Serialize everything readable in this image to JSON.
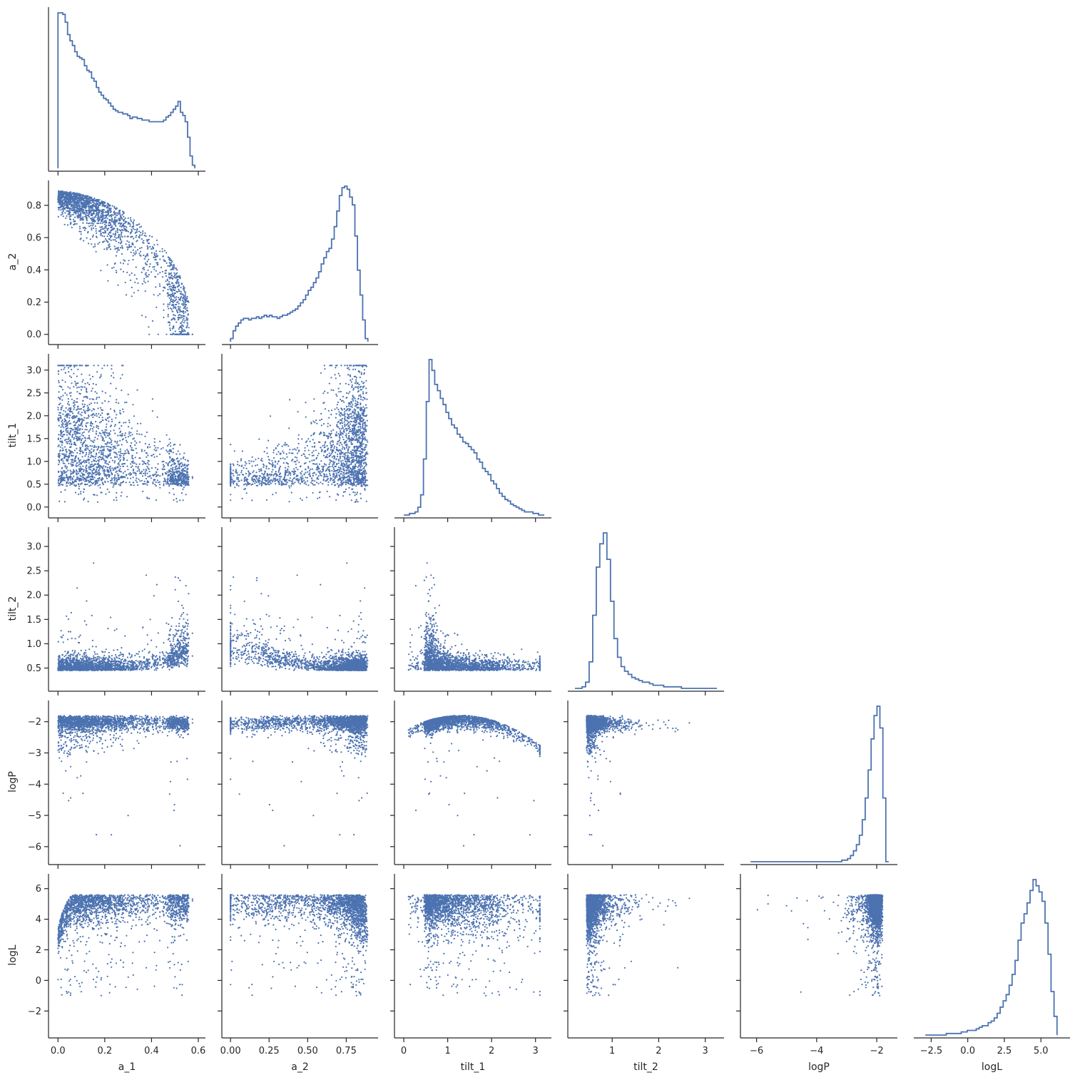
{
  "colors": {
    "series": "#4c72b0",
    "axis": "#262626",
    "background": "#ffffff"
  },
  "chart_data": {
    "type": "scatter",
    "layout": "corner-pairplot",
    "variables": [
      "a_1",
      "a_2",
      "tilt_1",
      "tilt_2",
      "logP",
      "logL"
    ],
    "axis_labels": {
      "x": [
        "a_1",
        "a_2",
        "tilt_1",
        "tilt_2",
        "logP",
        "logL"
      ],
      "y": [
        "",
        "a_2",
        "tilt_1",
        "tilt_2",
        "logP",
        "logL"
      ]
    },
    "ranges": {
      "a_1": [
        -0.01,
        0.6
      ],
      "a_2": [
        -0.01,
        0.91
      ],
      "tilt_1": [
        -0.05,
        3.2
      ],
      "tilt_2": [
        0.2,
        3.25
      ],
      "logP": [
        -6.3,
        -1.55
      ],
      "logL": [
        -3.2,
        6.5
      ]
    },
    "ticks": {
      "a_1": {
        "values": [
          0.0,
          0.2,
          0.4,
          0.6
        ],
        "labels": [
          "0.0",
          "0.2",
          "0.4",
          "0.6"
        ]
      },
      "a_2": {
        "values": [
          0.0,
          0.25,
          0.5,
          0.75
        ],
        "labels": [
          "0.00",
          "0.25",
          "0.50",
          "0.75"
        ]
      },
      "tilt_1": {
        "values": [
          0,
          1,
          2,
          3
        ],
        "labels": [
          "0",
          "1",
          "2",
          "3"
        ]
      },
      "tilt_2": {
        "values": [
          1,
          2,
          3
        ],
        "labels": [
          "1",
          "2",
          "3"
        ]
      },
      "logP": {
        "values": [
          -6,
          -4,
          -2
        ],
        "labels": [
          "−6",
          "−4",
          "−2"
        ]
      },
      "logL": {
        "values": [
          -2.5,
          0.0,
          2.5,
          5.0
        ],
        "labels": [
          "−2.5",
          "0.0",
          "2.5",
          "5.0"
        ]
      }
    },
    "y_ticks": {
      "a_2": {
        "values": [
          0.0,
          0.2,
          0.4,
          0.6,
          0.8
        ],
        "labels": [
          "0.0",
          "0.2",
          "0.4",
          "0.6",
          "0.8"
        ]
      },
      "tilt_1": {
        "values": [
          0.0,
          0.5,
          1.0,
          1.5,
          2.0,
          2.5,
          3.0
        ],
        "labels": [
          "0.0",
          "0.5",
          "1.0",
          "1.5",
          "2.0",
          "2.5",
          "3.0"
        ]
      },
      "tilt_2": {
        "values": [
          0.5,
          1.0,
          1.5,
          2.0,
          2.5,
          3.0
        ],
        "labels": [
          "0.5",
          "1.0",
          "1.5",
          "2.0",
          "2.5",
          "3.0"
        ]
      },
      "logP": {
        "values": [
          -6,
          -5,
          -4,
          -3,
          -2
        ],
        "labels": [
          "−6",
          "−5",
          "−4",
          "−3",
          "−2"
        ]
      },
      "logL": {
        "values": [
          -2,
          0,
          2,
          4,
          6
        ],
        "labels": [
          "−2",
          "0",
          "2",
          "4",
          "6"
        ]
      }
    },
    "histograms": {
      "a_1": {
        "bin_start": 0.0,
        "bin_end": 0.585,
        "counts": [
          1.0,
          1.0,
          0.99,
          0.94,
          0.86,
          0.82,
          0.79,
          0.75,
          0.72,
          0.71,
          0.7,
          0.66,
          0.63,
          0.62,
          0.58,
          0.56,
          0.52,
          0.49,
          0.47,
          0.45,
          0.44,
          0.42,
          0.4,
          0.38,
          0.37,
          0.36,
          0.36,
          0.35,
          0.35,
          0.34,
          0.32,
          0.33,
          0.33,
          0.32,
          0.32,
          0.31,
          0.31,
          0.31,
          0.3,
          0.3,
          0.3,
          0.3,
          0.3,
          0.3,
          0.31,
          0.33,
          0.34,
          0.36,
          0.38,
          0.4,
          0.43,
          0.36,
          0.34,
          0.3,
          0.2,
          0.08,
          0.02
        ]
      },
      "a_2": {
        "bin_start": 0.0,
        "bin_end": 0.89,
        "counts": [
          0.02,
          0.07,
          0.1,
          0.12,
          0.14,
          0.15,
          0.15,
          0.14,
          0.15,
          0.15,
          0.16,
          0.15,
          0.16,
          0.17,
          0.16,
          0.17,
          0.16,
          0.16,
          0.15,
          0.16,
          0.17,
          0.17,
          0.18,
          0.19,
          0.2,
          0.21,
          0.23,
          0.25,
          0.27,
          0.3,
          0.33,
          0.35,
          0.38,
          0.41,
          0.45,
          0.5,
          0.54,
          0.58,
          0.6,
          0.66,
          0.74,
          0.84,
          0.94,
          0.99,
          1.0,
          0.98,
          0.93,
          0.88,
          0.68,
          0.46,
          0.3,
          0.14,
          0.02
        ]
      },
      "tilt_1": {
        "bin_start": 0.0,
        "bin_end": 3.2,
        "counts": [
          0.0,
          0.0,
          0.01,
          0.01,
          0.02,
          0.05,
          0.13,
          0.36,
          0.73,
          1.0,
          0.93,
          0.84,
          0.8,
          0.75,
          0.71,
          0.66,
          0.62,
          0.58,
          0.56,
          0.52,
          0.5,
          0.47,
          0.46,
          0.44,
          0.42,
          0.4,
          0.36,
          0.34,
          0.3,
          0.28,
          0.26,
          0.22,
          0.2,
          0.17,
          0.14,
          0.12,
          0.1,
          0.09,
          0.07,
          0.06,
          0.05,
          0.04,
          0.03,
          0.02,
          0.02,
          0.02,
          0.01,
          0.01,
          0.0,
          0.0
        ]
      },
      "tilt_2": {
        "bin_start": 0.2,
        "bin_end": 3.25,
        "counts": [
          0.0,
          0.0,
          0.01,
          0.04,
          0.17,
          0.47,
          0.78,
          0.93,
          1.0,
          0.83,
          0.56,
          0.32,
          0.2,
          0.14,
          0.11,
          0.09,
          0.07,
          0.06,
          0.05,
          0.04,
          0.04,
          0.03,
          0.02,
          0.02,
          0.02,
          0.01,
          0.01,
          0.01,
          0.01,
          0.01,
          0.0,
          0.0,
          0.0,
          0.0,
          0.0,
          0.0,
          0.0,
          0.0,
          0.0,
          0.0
        ]
      },
      "logP": {
        "bin_start": -6.2,
        "bin_end": -1.6,
        "counts": [
          0.0,
          0.0,
          0.0,
          0.0,
          0.0,
          0.0,
          0.0,
          0.0,
          0.0,
          0.0,
          0.0,
          0.0,
          0.0,
          0.0,
          0.0,
          0.0,
          0.0,
          0.0,
          0.0,
          0.0,
          0.0,
          0.0,
          0.0,
          0.0,
          0.0,
          0.0,
          0.0,
          0.0,
          0.0,
          0.0,
          0.0,
          0.01,
          0.01,
          0.02,
          0.04,
          0.07,
          0.11,
          0.17,
          0.27,
          0.41,
          0.59,
          0.79,
          0.94,
          1.0,
          0.86,
          0.41,
          0.0
        ]
      },
      "logL": {
        "bin_start": -2.9,
        "bin_end": 6.1,
        "counts": [
          0.0,
          0.0,
          0.0,
          0.0,
          0.0,
          0.0,
          0.0,
          0.01,
          0.01,
          0.01,
          0.01,
          0.01,
          0.02,
          0.02,
          0.03,
          0.03,
          0.03,
          0.04,
          0.05,
          0.06,
          0.06,
          0.08,
          0.09,
          0.11,
          0.14,
          0.18,
          0.22,
          0.26,
          0.32,
          0.39,
          0.48,
          0.61,
          0.72,
          0.78,
          0.85,
          0.93,
          1.0,
          0.96,
          0.92,
          0.86,
          0.72,
          0.52,
          0.28,
          0.12
        ]
      }
    },
    "scatter_point_count_per_panel": 2000
  }
}
